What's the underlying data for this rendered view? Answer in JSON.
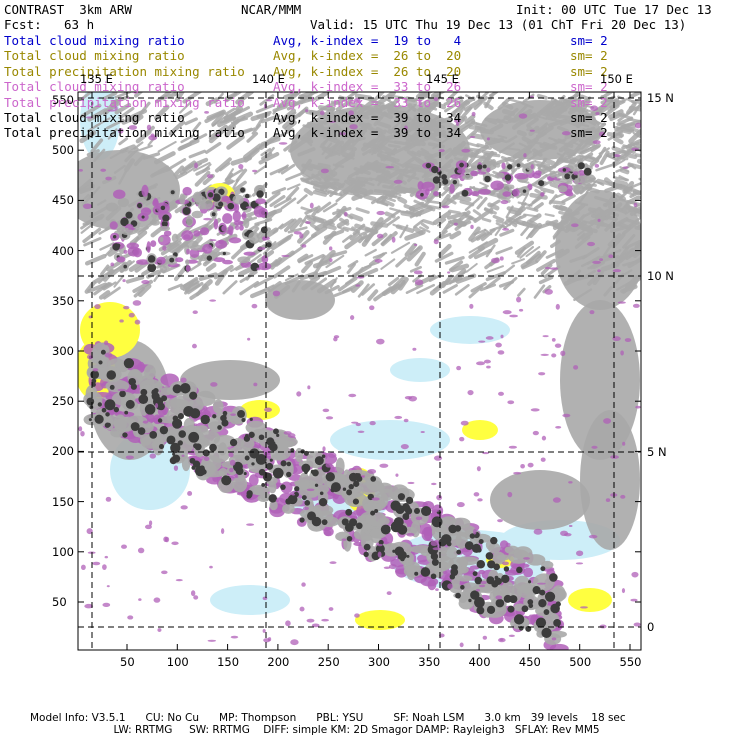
{
  "header": {
    "model": "CONTRAST  3km ARW",
    "org": "NCAR/MMM",
    "init": "Init: 00 UTC Tue 17 Dec 13",
    "fcst_label": "Fcst:",
    "fcst_value": "63 h",
    "valid": "Valid: 15 UTC Thu 19 Dec 13 (01 ChT Fri 20 Dec 13)"
  },
  "legend": [
    {
      "field": "Total cloud mixing ratio",
      "avg": "Avg, k-index =  19 to   4",
      "sm": "sm= 2",
      "color": "#0000cc"
    },
    {
      "field": "Total cloud mixing ratio",
      "avg": "Avg, k-index =  26 to  20",
      "sm": "sm= 2",
      "color": "#998800"
    },
    {
      "field": "Total precipitation mixing ratio",
      "avg": "Avg, k-index =  26 to  20",
      "sm": "sm= 2",
      "color": "#998800"
    },
    {
      "field": "Total cloud mixing ratio",
      "avg": "Avg, k-index =  33 to  26",
      "sm": "sm= 2",
      "color": "#cc66cc"
    },
    {
      "field": "Total precipitation mixing ratio",
      "avg": "Avg, k-index =  33 to  26",
      "sm": "sm= 2",
      "color": "#cc66cc"
    },
    {
      "field": "Total cloud mixing ratio",
      "avg": "Avg, k-index =  39 to  34",
      "sm": "sm= 2",
      "color": "#000000"
    },
    {
      "field": "Total precipitation mixing ratio",
      "avg": "Avg, k-index =  39 to  34",
      "sm": "sm= 2",
      "color": "#000000"
    }
  ],
  "map": {
    "x_ticks": [
      "50",
      "100",
      "150",
      "200",
      "250",
      "300",
      "350",
      "400",
      "450",
      "500",
      "550"
    ],
    "y_ticks": [
      "550",
      "500",
      "450",
      "400",
      "350",
      "300",
      "250",
      "200",
      "150",
      "100",
      "50"
    ],
    "lon_labels": [
      "135 E",
      "140 E",
      "145 E",
      "150 E"
    ],
    "lat_labels": [
      "15 N",
      "10 N",
      "5 N",
      "0"
    ],
    "colors": {
      "gray_cloud": "#a8a8a8",
      "dark_cloud": "#3c3c3c",
      "purple": "#b060b8",
      "yellow": "#ffff40",
      "light_blue": "#cdeef8",
      "grid": "#000000"
    }
  },
  "footer": {
    "line1": "Model Info: V3.5.1      CU: No Cu      MP: Thompson      PBL: YSU         SF: Noah LSM      3.0 km   39 levels    18 sec",
    "line2": "                         LW: RRTMG     SW: RRTMG    DIFF: simple KM: 2D Smagor DAMP: Rayleigh3   SFLAY: Rev MM5"
  }
}
